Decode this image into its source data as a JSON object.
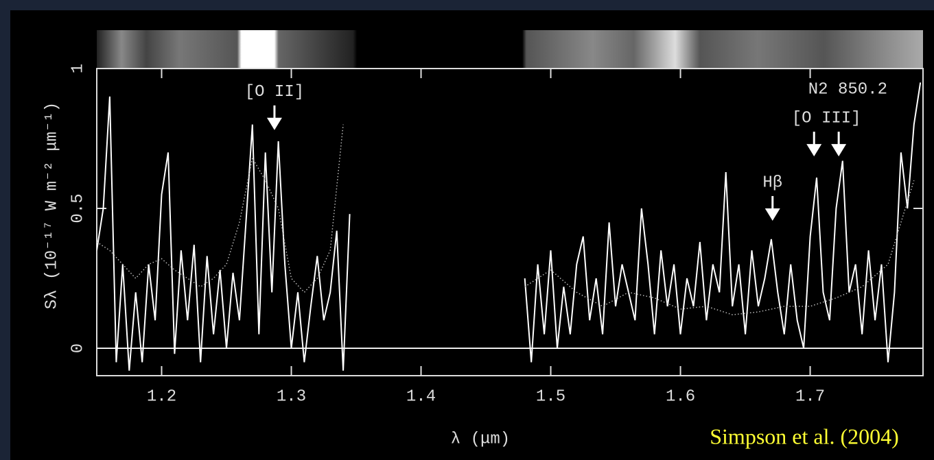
{
  "chart_data": {
    "type": "line",
    "xlabel": "λ (μm)",
    "ylabel": "Sλ (10⁻¹⁷ W m⁻² μm⁻¹)",
    "credit": "Simpson et al. (2004)",
    "xlim": [
      1.15,
      1.787
    ],
    "ylim": [
      -0.098,
      1
    ],
    "xticks": [
      1.2,
      1.3,
      1.4,
      1.5,
      1.6,
      1.7
    ],
    "yticks": [
      0,
      0.5,
      1
    ],
    "zero_line": true,
    "series": [
      {
        "color": "#ffffff",
        "style": "solid",
        "x": [
          1.15,
          1.155,
          1.16,
          1.165,
          1.17,
          1.175,
          1.18,
          1.185,
          1.19,
          1.195,
          1.2,
          1.205,
          1.21,
          1.215,
          1.22,
          1.225,
          1.23,
          1.235,
          1.24,
          1.245,
          1.25,
          1.255,
          1.26,
          1.265,
          1.27,
          1.275,
          1.28,
          1.285,
          1.29,
          1.295,
          1.3,
          1.305,
          1.31,
          1.315,
          1.32,
          1.325,
          1.33,
          1.335,
          1.34,
          1.345,
          1.41,
          1.48,
          1.485,
          1.49,
          1.495,
          1.5,
          1.505,
          1.51,
          1.515,
          1.52,
          1.525,
          1.53,
          1.535,
          1.54,
          1.545,
          1.55,
          1.555,
          1.56,
          1.565,
          1.57,
          1.575,
          1.58,
          1.585,
          1.59,
          1.595,
          1.6,
          1.605,
          1.61,
          1.615,
          1.62,
          1.625,
          1.63,
          1.635,
          1.64,
          1.645,
          1.65,
          1.655,
          1.66,
          1.665,
          1.67,
          1.675,
          1.68,
          1.685,
          1.69,
          1.695,
          1.7,
          1.705,
          1.71,
          1.715,
          1.72,
          1.725,
          1.73,
          1.735,
          1.74,
          1.745,
          1.75,
          1.755,
          1.76,
          1.765,
          1.77,
          1.775,
          1.78,
          1.785
        ],
        "values": [
          0.35,
          0.5,
          0.9,
          -0.05,
          0.3,
          -0.08,
          0.2,
          -0.05,
          0.3,
          0.1,
          0.55,
          0.7,
          -0.02,
          0.35,
          0.1,
          0.37,
          -0.05,
          0.33,
          0.05,
          0.28,
          0.0,
          0.27,
          0.1,
          0.45,
          0.8,
          0.05,
          0.7,
          0.2,
          0.74,
          0.3,
          0.0,
          0.2,
          -0.05,
          0.15,
          0.33,
          0.1,
          0.2,
          0.42,
          -0.08,
          0.48,
          null,
          0.25,
          -0.05,
          0.3,
          0.05,
          0.35,
          0.0,
          0.22,
          0.05,
          0.3,
          0.4,
          0.1,
          0.25,
          0.05,
          0.45,
          0.15,
          0.3,
          0.2,
          0.1,
          0.5,
          0.3,
          0.05,
          0.35,
          0.15,
          0.3,
          0.05,
          0.25,
          0.15,
          0.38,
          0.1,
          0.3,
          0.2,
          0.63,
          0.15,
          0.3,
          0.05,
          0.35,
          0.15,
          0.25,
          0.39,
          0.2,
          0.05,
          0.3,
          0.1,
          0.0,
          0.4,
          0.61,
          0.2,
          0.1,
          0.5,
          0.67,
          0.2,
          0.3,
          0.05,
          0.35,
          0.1,
          0.3,
          -0.05,
          0.2,
          0.7,
          0.5,
          0.8,
          0.95
        ]
      },
      {
        "color": "#bbbbbb",
        "style": "dotted",
        "x": [
          1.15,
          1.16,
          1.17,
          1.18,
          1.19,
          1.2,
          1.21,
          1.22,
          1.23,
          1.24,
          1.25,
          1.26,
          1.27,
          1.28,
          1.29,
          1.3,
          1.31,
          1.32,
          1.33,
          1.34,
          1.41,
          1.48,
          1.5,
          1.52,
          1.54,
          1.56,
          1.58,
          1.6,
          1.62,
          1.64,
          1.66,
          1.68,
          1.7,
          1.72,
          1.74,
          1.76,
          1.78
        ],
        "values": [
          0.38,
          0.35,
          0.3,
          0.25,
          0.3,
          0.32,
          0.28,
          0.25,
          0.22,
          0.25,
          0.3,
          0.45,
          0.68,
          0.6,
          0.5,
          0.25,
          0.2,
          0.25,
          0.35,
          0.8,
          null,
          0.22,
          0.28,
          0.2,
          0.15,
          0.2,
          0.18,
          0.14,
          0.15,
          0.12,
          0.13,
          0.15,
          0.15,
          0.18,
          0.22,
          0.3,
          0.6
        ]
      }
    ],
    "annotations": [
      {
        "text": "[O II]",
        "x": [
          1.287
        ],
        "y": 0.78,
        "arrow": true
      },
      {
        "text": "Hβ",
        "x": [
          1.671
        ],
        "y": 0.456,
        "arrow": true
      },
      {
        "text": "[O III]",
        "x": [
          1.703,
          1.722
        ],
        "y": 0.686,
        "arrow": true
      },
      {
        "text": "N2 850.2",
        "x": [
          1.729
        ],
        "y": 0.926,
        "arrow": false
      }
    ]
  }
}
